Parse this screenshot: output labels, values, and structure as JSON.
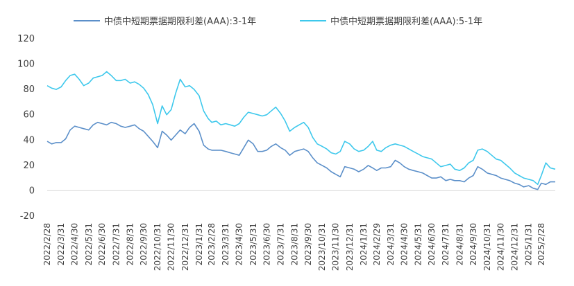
{
  "chart_data": {
    "type": "line",
    "title": "",
    "xlabel": "",
    "ylabel": "",
    "ylim": [
      -20,
      120
    ],
    "yticks": [
      -20,
      0,
      20,
      40,
      60,
      80,
      100,
      120
    ],
    "grid": false,
    "legend_position": "top",
    "x_tick_labels": [
      "2022/2/28",
      "2022/3/31",
      "2022/4/30",
      "2022/5/31",
      "2022/6/30",
      "2022/7/31",
      "2022/8/31",
      "2022/9/30",
      "2022/10/31",
      "2022/11/30",
      "2022/12/31",
      "2023/1/31",
      "2023/2/28",
      "2023/3/31",
      "2023/4/30",
      "2023/5/31",
      "2023/6/30",
      "2023/7/31",
      "2023/8/31",
      "2023/9/30",
      "2023/10/31",
      "2023/11/30",
      "2023/12/31",
      "2024/1/31",
      "2024/2/29",
      "2024/3/31",
      "2024/4/30",
      "2024/5/31",
      "2024/6/30",
      "2024/7/31",
      "2024/8/31",
      "2024/9/30",
      "2024/10/31",
      "2024/11/30",
      "2024/12/31",
      "2025/1/31",
      "2025/2/28"
    ],
    "x_end": "2025/3/31",
    "series": [
      {
        "name": "中债中短期票据期限利差(AAA):3-1年",
        "color": "#5b8fc9",
        "points": [
          [
            "2022/2/28",
            39
          ],
          [
            "2022/3/10",
            37
          ],
          [
            "2022/3/20",
            38
          ],
          [
            "2022/3/31",
            38
          ],
          [
            "2022/4/10",
            41
          ],
          [
            "2022/4/20",
            48
          ],
          [
            "2022/4/30",
            51
          ],
          [
            "2022/5/10",
            50
          ],
          [
            "2022/5/20",
            49
          ],
          [
            "2022/5/31",
            48
          ],
          [
            "2022/6/10",
            52
          ],
          [
            "2022/6/20",
            54
          ],
          [
            "2022/6/30",
            53
          ],
          [
            "2022/7/10",
            52
          ],
          [
            "2022/7/20",
            54
          ],
          [
            "2022/7/31",
            53
          ],
          [
            "2022/8/10",
            51
          ],
          [
            "2022/8/20",
            50
          ],
          [
            "2022/8/31",
            51
          ],
          [
            "2022/9/10",
            52
          ],
          [
            "2022/9/20",
            49
          ],
          [
            "2022/9/30",
            47
          ],
          [
            "2022/10/10",
            43
          ],
          [
            "2022/10/20",
            39
          ],
          [
            "2022/10/31",
            34
          ],
          [
            "2022/11/10",
            47
          ],
          [
            "2022/11/20",
            44
          ],
          [
            "2022/11/30",
            40
          ],
          [
            "2022/12/10",
            44
          ],
          [
            "2022/12/20",
            48
          ],
          [
            "2022/12/31",
            45
          ],
          [
            "2023/1/10",
            50
          ],
          [
            "2023/1/20",
            53
          ],
          [
            "2023/1/31",
            47
          ],
          [
            "2023/2/10",
            36
          ],
          [
            "2023/2/20",
            33
          ],
          [
            "2023/2/28",
            32
          ],
          [
            "2023/3/10",
            32
          ],
          [
            "2023/3/20",
            32
          ],
          [
            "2023/3/31",
            31
          ],
          [
            "2023/4/10",
            30
          ],
          [
            "2023/4/20",
            29
          ],
          [
            "2023/4/30",
            28
          ],
          [
            "2023/5/10",
            34
          ],
          [
            "2023/5/20",
            40
          ],
          [
            "2023/5/31",
            37
          ],
          [
            "2023/6/10",
            31
          ],
          [
            "2023/6/20",
            31
          ],
          [
            "2023/6/30",
            32
          ],
          [
            "2023/7/10",
            35
          ],
          [
            "2023/7/20",
            37
          ],
          [
            "2023/7/31",
            34
          ],
          [
            "2023/8/10",
            32
          ],
          [
            "2023/8/20",
            28
          ],
          [
            "2023/8/31",
            31
          ],
          [
            "2023/9/10",
            32
          ],
          [
            "2023/9/20",
            33
          ],
          [
            "2023/9/30",
            31
          ],
          [
            "2023/10/10",
            26
          ],
          [
            "2023/10/20",
            22
          ],
          [
            "2023/10/31",
            20
          ],
          [
            "2023/11/10",
            18
          ],
          [
            "2023/11/20",
            15
          ],
          [
            "2023/11/30",
            13
          ],
          [
            "2023/12/10",
            11
          ],
          [
            "2023/12/20",
            19
          ],
          [
            "2023/12/31",
            18
          ],
          [
            "2024/1/10",
            17
          ],
          [
            "2024/1/20",
            15
          ],
          [
            "2024/1/31",
            17
          ],
          [
            "2024/2/10",
            20
          ],
          [
            "2024/2/20",
            18
          ],
          [
            "2024/2/29",
            16
          ],
          [
            "2024/3/10",
            18
          ],
          [
            "2024/3/20",
            18
          ],
          [
            "2024/3/31",
            19
          ],
          [
            "2024/4/10",
            24
          ],
          [
            "2024/4/20",
            22
          ],
          [
            "2024/4/30",
            19
          ],
          [
            "2024/5/10",
            17
          ],
          [
            "2024/5/20",
            16
          ],
          [
            "2024/5/31",
            15
          ],
          [
            "2024/6/10",
            14
          ],
          [
            "2024/6/20",
            12
          ],
          [
            "2024/6/30",
            10
          ],
          [
            "2024/7/10",
            10
          ],
          [
            "2024/7/20",
            11
          ],
          [
            "2024/7/31",
            8
          ],
          [
            "2024/8/10",
            9
          ],
          [
            "2024/8/20",
            8
          ],
          [
            "2024/8/31",
            8
          ],
          [
            "2024/9/10",
            7
          ],
          [
            "2024/9/20",
            10
          ],
          [
            "2024/9/30",
            12
          ],
          [
            "2024/10/10",
            19
          ],
          [
            "2024/10/20",
            17
          ],
          [
            "2024/10/31",
            14
          ],
          [
            "2024/11/10",
            13
          ],
          [
            "2024/11/20",
            12
          ],
          [
            "2024/11/30",
            10
          ],
          [
            "2024/12/10",
            9
          ],
          [
            "2024/12/20",
            8
          ],
          [
            "2024/12/31",
            6
          ],
          [
            "2025/1/10",
            5
          ],
          [
            "2025/1/20",
            3
          ],
          [
            "2025/1/31",
            4
          ],
          [
            "2025/2/10",
            2
          ],
          [
            "2025/2/20",
            1
          ],
          [
            "2025/2/28",
            6
          ],
          [
            "2025/3/10",
            5
          ],
          [
            "2025/3/20",
            7
          ],
          [
            "2025/3/31",
            7
          ]
        ]
      },
      {
        "name": "中债中短期票据期限利差(AAA):5-1年",
        "color": "#3dc8ec",
        "points": [
          [
            "2022/2/28",
            83
          ],
          [
            "2022/3/10",
            81
          ],
          [
            "2022/3/20",
            80
          ],
          [
            "2022/3/31",
            82
          ],
          [
            "2022/4/10",
            87
          ],
          [
            "2022/4/20",
            91
          ],
          [
            "2022/4/30",
            92
          ],
          [
            "2022/5/10",
            88
          ],
          [
            "2022/5/20",
            83
          ],
          [
            "2022/5/31",
            85
          ],
          [
            "2022/6/10",
            89
          ],
          [
            "2022/6/20",
            90
          ],
          [
            "2022/6/30",
            91
          ],
          [
            "2022/7/10",
            94
          ],
          [
            "2022/7/20",
            91
          ],
          [
            "2022/7/31",
            87
          ],
          [
            "2022/8/10",
            87
          ],
          [
            "2022/8/20",
            88
          ],
          [
            "2022/8/31",
            85
          ],
          [
            "2022/9/10",
            86
          ],
          [
            "2022/9/20",
            84
          ],
          [
            "2022/9/30",
            81
          ],
          [
            "2022/10/10",
            76
          ],
          [
            "2022/10/20",
            68
          ],
          [
            "2022/10/31",
            53
          ],
          [
            "2022/11/10",
            67
          ],
          [
            "2022/11/20",
            60
          ],
          [
            "2022/11/30",
            64
          ],
          [
            "2022/12/10",
            77
          ],
          [
            "2022/12/20",
            88
          ],
          [
            "2022/12/31",
            82
          ],
          [
            "2023/1/10",
            83
          ],
          [
            "2023/1/20",
            80
          ],
          [
            "2023/1/31",
            75
          ],
          [
            "2023/2/10",
            63
          ],
          [
            "2023/2/20",
            57
          ],
          [
            "2023/2/28",
            54
          ],
          [
            "2023/3/10",
            55
          ],
          [
            "2023/3/20",
            52
          ],
          [
            "2023/3/31",
            53
          ],
          [
            "2023/4/10",
            52
          ],
          [
            "2023/4/20",
            51
          ],
          [
            "2023/4/30",
            53
          ],
          [
            "2023/5/10",
            58
          ],
          [
            "2023/5/20",
            62
          ],
          [
            "2023/5/31",
            61
          ],
          [
            "2023/6/10",
            60
          ],
          [
            "2023/6/20",
            59
          ],
          [
            "2023/6/30",
            60
          ],
          [
            "2023/7/10",
            63
          ],
          [
            "2023/7/20",
            66
          ],
          [
            "2023/7/31",
            61
          ],
          [
            "2023/8/10",
            55
          ],
          [
            "2023/8/20",
            47
          ],
          [
            "2023/8/31",
            50
          ],
          [
            "2023/9/10",
            52
          ],
          [
            "2023/9/20",
            54
          ],
          [
            "2023/9/30",
            50
          ],
          [
            "2023/10/10",
            42
          ],
          [
            "2023/10/20",
            37
          ],
          [
            "2023/10/31",
            35
          ],
          [
            "2023/11/10",
            33
          ],
          [
            "2023/11/20",
            30
          ],
          [
            "2023/11/30",
            29
          ],
          [
            "2023/12/10",
            31
          ],
          [
            "2023/12/20",
            39
          ],
          [
            "2023/12/31",
            37
          ],
          [
            "2024/1/10",
            33
          ],
          [
            "2024/1/20",
            31
          ],
          [
            "2024/1/31",
            32
          ],
          [
            "2024/2/10",
            35
          ],
          [
            "2024/2/20",
            39
          ],
          [
            "2024/2/29",
            32
          ],
          [
            "2024/3/10",
            31
          ],
          [
            "2024/3/20",
            34
          ],
          [
            "2024/3/31",
            36
          ],
          [
            "2024/4/10",
            37
          ],
          [
            "2024/4/20",
            36
          ],
          [
            "2024/4/30",
            35
          ],
          [
            "2024/5/10",
            33
          ],
          [
            "2024/5/20",
            31
          ],
          [
            "2024/5/31",
            29
          ],
          [
            "2024/6/10",
            27
          ],
          [
            "2024/6/20",
            26
          ],
          [
            "2024/6/30",
            25
          ],
          [
            "2024/7/10",
            22
          ],
          [
            "2024/7/20",
            19
          ],
          [
            "2024/7/31",
            20
          ],
          [
            "2024/8/10",
            21
          ],
          [
            "2024/8/20",
            17
          ],
          [
            "2024/8/31",
            16
          ],
          [
            "2024/9/10",
            18
          ],
          [
            "2024/9/20",
            22
          ],
          [
            "2024/9/30",
            24
          ],
          [
            "2024/10/10",
            32
          ],
          [
            "2024/10/20",
            33
          ],
          [
            "2024/10/31",
            31
          ],
          [
            "2024/11/10",
            28
          ],
          [
            "2024/11/20",
            25
          ],
          [
            "2024/11/30",
            24
          ],
          [
            "2024/12/10",
            21
          ],
          [
            "2024/12/20",
            18
          ],
          [
            "2024/12/31",
            14
          ],
          [
            "2025/1/10",
            12
          ],
          [
            "2025/1/20",
            10
          ],
          [
            "2025/1/31",
            9
          ],
          [
            "2025/2/10",
            8
          ],
          [
            "2025/2/20",
            5
          ],
          [
            "2025/2/28",
            12
          ],
          [
            "2025/3/10",
            22
          ],
          [
            "2025/3/20",
            18
          ],
          [
            "2025/3/31",
            17
          ]
        ]
      }
    ]
  }
}
